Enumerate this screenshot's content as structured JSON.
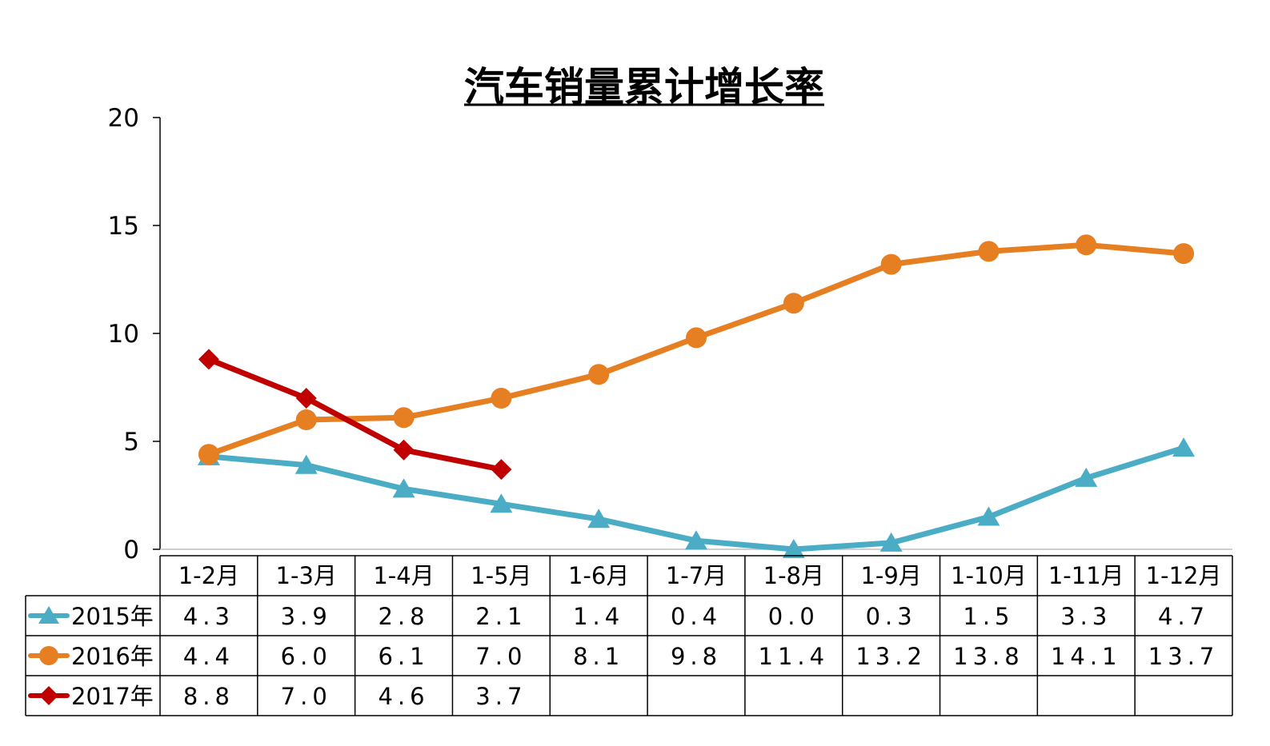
{
  "chart_data": {
    "type": "line",
    "title": "汽车销量累计增长率",
    "xlabel": "",
    "ylabel": "",
    "categories": [
      "1-2月",
      "1-3月",
      "1-4月",
      "1-5月",
      "1-6月",
      "1-7月",
      "1-8月",
      "1-9月",
      "1-10月",
      "1-11月",
      "1-12月"
    ],
    "ylim": [
      0,
      20
    ],
    "yticks": [
      0,
      5,
      10,
      15,
      20
    ],
    "grid": false,
    "legend": "data-table-left",
    "data_table": true,
    "series": [
      {
        "name": "2015年",
        "color": "#4bacc6",
        "marker": "triangle",
        "values": [
          4.3,
          3.9,
          2.8,
          2.1,
          1.4,
          0.4,
          0.0,
          0.3,
          1.5,
          3.3,
          4.7
        ],
        "labels": [
          "4.3",
          "3.9",
          "2.8",
          "2.1",
          "1.4",
          "0.4",
          "0.0",
          "0.3",
          "1.5",
          "3.3",
          "4.7"
        ]
      },
      {
        "name": "2016年",
        "color": "#e67e22",
        "marker": "circle",
        "values": [
          4.4,
          6.0,
          6.1,
          7.0,
          8.1,
          9.8,
          11.4,
          13.2,
          13.8,
          14.1,
          13.7
        ],
        "labels": [
          "4.4",
          "6.0",
          "6.1",
          "7.0",
          "8.1",
          "9.8",
          "11.4",
          "13.2",
          "13.8",
          "14.1",
          "13.7"
        ]
      },
      {
        "name": "2017年",
        "color": "#c00000",
        "marker": "diamond",
        "values": [
          8.8,
          7.0,
          4.6,
          3.7,
          null,
          null,
          null,
          null,
          null,
          null,
          null
        ],
        "labels": [
          "8.8",
          "7.0",
          "4.6",
          "3.7",
          "",
          "",
          "",
          "",
          "",
          "",
          ""
        ]
      }
    ]
  }
}
